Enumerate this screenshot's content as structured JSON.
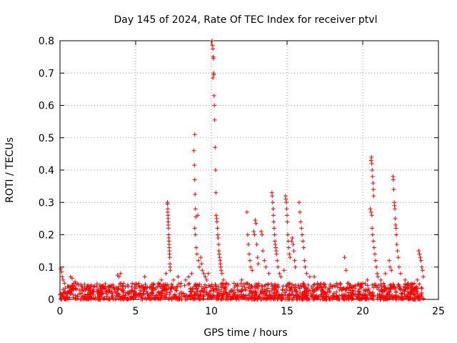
{
  "chart_data": {
    "type": "scatter",
    "title": "Day 145 of 2024, Rate Of TEC Index for receiver ptvl",
    "xlabel": "GPS time / hours",
    "ylabel": "ROTI / TECUs",
    "xlim": [
      0,
      25
    ],
    "ylim": [
      0,
      0.8
    ],
    "xticks": [
      0,
      5,
      10,
      15,
      20,
      25
    ],
    "yticks": [
      0,
      0.1,
      0.2,
      0.3,
      0.4,
      0.5,
      0.6,
      0.7,
      0.8
    ],
    "grid": true,
    "marker": "+",
    "marker_color": "#ff0000",
    "series": [
      {
        "name": "ROTI",
        "points": [
          [
            0.05,
            0.095
          ],
          [
            0.1,
            0.085
          ],
          [
            0.15,
            0.07
          ],
          [
            0.2,
            0.06
          ],
          [
            0.3,
            0.05
          ],
          [
            0.5,
            0.04
          ],
          [
            0.7,
            0.07
          ],
          [
            0.8,
            0.065
          ],
          [
            0.9,
            0.05
          ],
          [
            1.0,
            0.055
          ],
          [
            1.2,
            0.045
          ],
          [
            1.5,
            0.04
          ],
          [
            2.0,
            0.035
          ],
          [
            2.5,
            0.03
          ],
          [
            3.0,
            0.04
          ],
          [
            3.5,
            0.045
          ],
          [
            3.8,
            0.075
          ],
          [
            3.9,
            0.07
          ],
          [
            4.0,
            0.08
          ],
          [
            4.2,
            0.05
          ],
          [
            4.5,
            0.04
          ],
          [
            5.2,
            0.05
          ],
          [
            5.5,
            0.04
          ],
          [
            5.6,
            0.07
          ],
          [
            6.0,
            0.04
          ],
          [
            6.5,
            0.05
          ],
          [
            6.7,
            0.06
          ],
          [
            7.0,
            0.08
          ],
          [
            7.1,
            0.3
          ],
          [
            7.1,
            0.295
          ],
          [
            7.12,
            0.28
          ],
          [
            7.12,
            0.27
          ],
          [
            7.14,
            0.26
          ],
          [
            7.14,
            0.25
          ],
          [
            7.15,
            0.24
          ],
          [
            7.16,
            0.23
          ],
          [
            7.17,
            0.22
          ],
          [
            7.18,
            0.2
          ],
          [
            7.19,
            0.19
          ],
          [
            7.2,
            0.18
          ],
          [
            7.21,
            0.17
          ],
          [
            7.22,
            0.16
          ],
          [
            7.23,
            0.15
          ],
          [
            7.24,
            0.14
          ],
          [
            7.25,
            0.13
          ],
          [
            7.26,
            0.11
          ],
          [
            7.27,
            0.1
          ],
          [
            7.28,
            0.09
          ],
          [
            7.5,
            0.06
          ],
          [
            7.8,
            0.07
          ],
          [
            8.0,
            0.05
          ],
          [
            8.3,
            0.06
          ],
          [
            8.5,
            0.07
          ],
          [
            8.7,
            0.08
          ],
          [
            8.9,
            0.51
          ],
          [
            8.85,
            0.46
          ],
          [
            8.88,
            0.415
          ],
          [
            8.9,
            0.37
          ],
          [
            8.92,
            0.325
          ],
          [
            8.95,
            0.28
          ],
          [
            8.97,
            0.255
          ],
          [
            8.9,
            0.22
          ],
          [
            8.95,
            0.2
          ],
          [
            9.0,
            0.16
          ],
          [
            9.05,
            0.14
          ],
          [
            9.1,
            0.26
          ],
          [
            9.15,
            0.12
          ],
          [
            9.2,
            0.1
          ],
          [
            9.3,
            0.13
          ],
          [
            9.35,
            0.11
          ],
          [
            9.4,
            0.09
          ],
          [
            9.5,
            0.08
          ],
          [
            9.6,
            0.07
          ],
          [
            9.7,
            0.06
          ],
          [
            9.8,
            0.08
          ],
          [
            10.05,
            0.8
          ],
          [
            10.08,
            0.785
          ],
          [
            10.1,
            0.775
          ],
          [
            10.12,
            0.75
          ],
          [
            10.14,
            0.745
          ],
          [
            10.15,
            0.7
          ],
          [
            10.16,
            0.695
          ],
          [
            10.1,
            0.685
          ],
          [
            10.18,
            0.63
          ],
          [
            10.2,
            0.6
          ],
          [
            10.22,
            0.555
          ],
          [
            10.25,
            0.47
          ],
          [
            10.28,
            0.4
          ],
          [
            10.3,
            0.33
          ],
          [
            10.32,
            0.26
          ],
          [
            10.35,
            0.25
          ],
          [
            10.37,
            0.24
          ],
          [
            10.4,
            0.22
          ],
          [
            10.42,
            0.2
          ],
          [
            10.45,
            0.19
          ],
          [
            10.48,
            0.17
          ],
          [
            10.5,
            0.15
          ],
          [
            10.52,
            0.14
          ],
          [
            10.55,
            0.13
          ],
          [
            10.58,
            0.12
          ],
          [
            10.6,
            0.11
          ],
          [
            10.62,
            0.1
          ],
          [
            10.65,
            0.09
          ],
          [
            10.7,
            0.08
          ],
          [
            10.8,
            0.06
          ],
          [
            11.0,
            0.05
          ],
          [
            11.5,
            0.05
          ],
          [
            12.0,
            0.06
          ],
          [
            12.35,
            0.27
          ],
          [
            12.4,
            0.2
          ],
          [
            12.45,
            0.17
          ],
          [
            12.5,
            0.14
          ],
          [
            12.55,
            0.12
          ],
          [
            12.6,
            0.1
          ],
          [
            12.7,
            0.09
          ],
          [
            12.8,
            0.21
          ],
          [
            12.85,
            0.2
          ],
          [
            12.9,
            0.245
          ],
          [
            12.95,
            0.235
          ],
          [
            13.0,
            0.17
          ],
          [
            13.05,
            0.13
          ],
          [
            13.1,
            0.11
          ],
          [
            13.3,
            0.21
          ],
          [
            13.35,
            0.2
          ],
          [
            13.4,
            0.15
          ],
          [
            13.5,
            0.12
          ],
          [
            13.6,
            0.1
          ],
          [
            13.8,
            0.08
          ],
          [
            14.0,
            0.33
          ],
          [
            14.02,
            0.32
          ],
          [
            14.05,
            0.3
          ],
          [
            14.08,
            0.28
          ],
          [
            14.1,
            0.26
          ],
          [
            14.12,
            0.24
          ],
          [
            14.15,
            0.22
          ],
          [
            14.18,
            0.2
          ],
          [
            14.2,
            0.18
          ],
          [
            14.22,
            0.17
          ],
          [
            14.25,
            0.16
          ],
          [
            14.28,
            0.15
          ],
          [
            14.3,
            0.14
          ],
          [
            14.35,
            0.12
          ],
          [
            14.4,
            0.1
          ],
          [
            14.5,
            0.08
          ],
          [
            14.6,
            0.07
          ],
          [
            14.8,
            0.09
          ],
          [
            14.9,
            0.32
          ],
          [
            14.92,
            0.31
          ],
          [
            14.95,
            0.3
          ],
          [
            14.98,
            0.28
          ],
          [
            15.0,
            0.26
          ],
          [
            15.02,
            0.24
          ],
          [
            15.05,
            0.2
          ],
          [
            15.08,
            0.18
          ],
          [
            15.1,
            0.16
          ],
          [
            15.15,
            0.14
          ],
          [
            15.2,
            0.13
          ],
          [
            15.3,
            0.18
          ],
          [
            15.35,
            0.19
          ],
          [
            15.4,
            0.17
          ],
          [
            15.45,
            0.15
          ],
          [
            15.5,
            0.12
          ],
          [
            15.55,
            0.1
          ],
          [
            15.8,
            0.3
          ],
          [
            15.85,
            0.27
          ],
          [
            15.9,
            0.24
          ],
          [
            15.95,
            0.22
          ],
          [
            16.0,
            0.2
          ],
          [
            16.05,
            0.18
          ],
          [
            16.1,
            0.16
          ],
          [
            16.15,
            0.12
          ],
          [
            16.2,
            0.1
          ],
          [
            16.3,
            0.08
          ],
          [
            16.5,
            0.07
          ],
          [
            16.8,
            0.07
          ],
          [
            17.0,
            0.05
          ],
          [
            17.5,
            0.04
          ],
          [
            18.0,
            0.04
          ],
          [
            18.5,
            0.05
          ],
          [
            18.8,
            0.13
          ],
          [
            18.9,
            0.09
          ],
          [
            19.0,
            0.05
          ],
          [
            19.5,
            0.04
          ],
          [
            20.0,
            0.05
          ],
          [
            20.3,
            0.06
          ],
          [
            20.55,
            0.43
          ],
          [
            20.58,
            0.44
          ],
          [
            20.6,
            0.42
          ],
          [
            20.62,
            0.4
          ],
          [
            20.65,
            0.38
          ],
          [
            20.68,
            0.36
          ],
          [
            20.7,
            0.34
          ],
          [
            20.72,
            0.32
          ],
          [
            20.5,
            0.28
          ],
          [
            20.55,
            0.27
          ],
          [
            20.6,
            0.26
          ],
          [
            20.62,
            0.22
          ],
          [
            20.65,
            0.2
          ],
          [
            20.7,
            0.18
          ],
          [
            20.75,
            0.16
          ],
          [
            20.8,
            0.14
          ],
          [
            20.85,
            0.12
          ],
          [
            20.9,
            0.1
          ],
          [
            20.95,
            0.08
          ],
          [
            21.0,
            0.07
          ],
          [
            21.2,
            0.06
          ],
          [
            21.5,
            0.08
          ],
          [
            21.75,
            0.12
          ],
          [
            21.8,
            0.1
          ],
          [
            21.9,
            0.09
          ],
          [
            22.0,
            0.38
          ],
          [
            22.02,
            0.37
          ],
          [
            22.05,
            0.34
          ],
          [
            22.08,
            0.3
          ],
          [
            22.1,
            0.29
          ],
          [
            22.12,
            0.28
          ],
          [
            22.15,
            0.25
          ],
          [
            22.17,
            0.23
          ],
          [
            22.2,
            0.22
          ],
          [
            22.22,
            0.2
          ],
          [
            22.25,
            0.17
          ],
          [
            22.3,
            0.15
          ],
          [
            22.35,
            0.13
          ],
          [
            22.4,
            0.1
          ],
          [
            22.5,
            0.08
          ],
          [
            22.8,
            0.06
          ],
          [
            23.0,
            0.05
          ],
          [
            23.2,
            0.04
          ],
          [
            23.4,
            0.05
          ],
          [
            23.6,
            0.06
          ],
          [
            23.7,
            0.15
          ],
          [
            23.75,
            0.14
          ],
          [
            23.8,
            0.13
          ],
          [
            23.85,
            0.12
          ],
          [
            23.9,
            0.1
          ],
          [
            23.95,
            0.09
          ],
          [
            24.0,
            0.07
          ]
        ]
      }
    ],
    "baseline_band": {
      "description": "dense cluster of low ROTI values across the whole day",
      "ymin": 0.0,
      "ymax": 0.05,
      "xmin": 0,
      "xmax": 24
    }
  }
}
